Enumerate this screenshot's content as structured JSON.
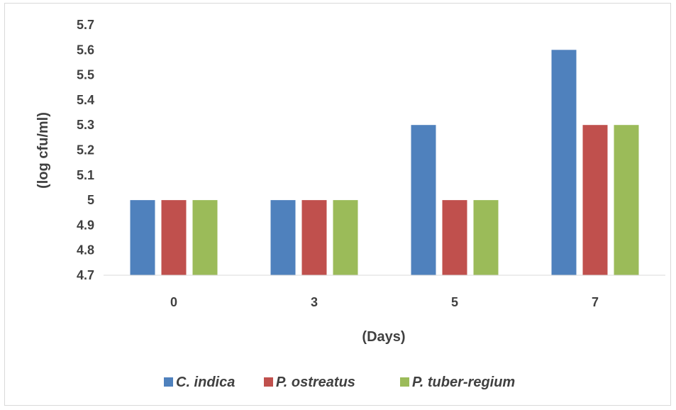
{
  "chart_data": {
    "type": "bar",
    "categories": [
      "0",
      "3",
      "5",
      "7"
    ],
    "series": [
      {
        "name": "C. indica",
        "values": [
          5.0,
          5.0,
          5.3,
          5.6
        ],
        "color": "#4f81bd"
      },
      {
        "name": "P. ostreatus",
        "values": [
          5.0,
          5.0,
          5.0,
          5.3
        ],
        "color": "#c0504d"
      },
      {
        "name": "P. tuber-regium",
        "values": [
          5.0,
          5.0,
          5.0,
          5.3
        ],
        "color": "#9bbb59"
      }
    ],
    "xlabel": "(Days)",
    "ylabel": "(log cfu/ml)",
    "ylim": [
      4.7,
      5.7
    ],
    "yticks": [
      "4.7",
      "4.8",
      "4.9",
      "5",
      "5.1",
      "5.2",
      "5.3",
      "5.4",
      "5.5",
      "5.6",
      "5.7"
    ],
    "grid": false,
    "legend_position": "bottom"
  }
}
